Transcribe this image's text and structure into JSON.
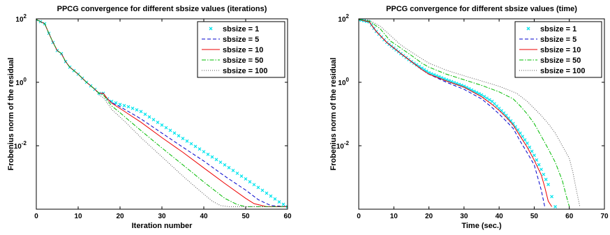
{
  "chart_data": [
    {
      "type": "line",
      "title": "PPCG convergence for different sbsize values (iterations)",
      "xlabel": "Iteration number",
      "ylabel": "Frobenius norm of the residual",
      "xlim": [
        0,
        60
      ],
      "ylim_log10": [
        -4,
        2
      ],
      "yscale": "log",
      "x_ticks": [
        "0",
        "10",
        "20",
        "30",
        "40",
        "50",
        "60"
      ],
      "y_ticks": [
        {
          "base": "10",
          "exp": "2"
        },
        {
          "base": "10",
          "exp": "0"
        },
        {
          "base": "10",
          "exp": "-2"
        }
      ],
      "legend_position": "top-right",
      "grid": false,
      "series": [
        {
          "name": "sbsize = 1",
          "color": "#00e5ee",
          "style": "markers",
          "points": [
            [
              0,
              95
            ],
            [
              2,
              70
            ],
            [
              3,
              35
            ],
            [
              4,
              18
            ],
            [
              5,
              10
            ],
            [
              6,
              8
            ],
            [
              7,
              4.5
            ],
            [
              8,
              3
            ],
            [
              10,
              1.8
            ],
            [
              12,
              1.0
            ],
            [
              14,
              0.6
            ],
            [
              15,
              0.45
            ],
            [
              16,
              0.45
            ],
            [
              17,
              0.3
            ],
            [
              18,
              0.25
            ],
            [
              20,
              0.2
            ],
            [
              22,
              0.17
            ],
            [
              25,
              0.12
            ],
            [
              30,
              0.045
            ],
            [
              35,
              0.017
            ],
            [
              40,
              0.0065
            ],
            [
              45,
              0.0025
            ],
            [
              50,
              0.0009
            ],
            [
              55,
              0.00032
            ],
            [
              58,
              0.00017
            ],
            [
              60,
              0.00012
            ]
          ]
        },
        {
          "name": "sbsize = 5",
          "color": "#0000cd",
          "style": "dashed",
          "points": [
            [
              0,
              95
            ],
            [
              2,
              70
            ],
            [
              3,
              35
            ],
            [
              4,
              18
            ],
            [
              5,
              10
            ],
            [
              6,
              8
            ],
            [
              7,
              4.5
            ],
            [
              8,
              3
            ],
            [
              10,
              1.8
            ],
            [
              12,
              1.0
            ],
            [
              14,
              0.6
            ],
            [
              15,
              0.45
            ],
            [
              16,
              0.45
            ],
            [
              17,
              0.3
            ],
            [
              18,
              0.23
            ],
            [
              20,
              0.17
            ],
            [
              22,
              0.12
            ],
            [
              25,
              0.07
            ],
            [
              30,
              0.025
            ],
            [
              35,
              0.009
            ],
            [
              40,
              0.0033
            ],
            [
              45,
              0.0011
            ],
            [
              50,
              0.0004
            ],
            [
              53,
              0.0002
            ],
            [
              56,
              0.00013
            ],
            [
              60,
              0.00012
            ]
          ]
        },
        {
          "name": "sbsize = 10",
          "color": "#ee0000",
          "style": "solid",
          "points": [
            [
              0,
              95
            ],
            [
              2,
              70
            ],
            [
              3,
              35
            ],
            [
              4,
              18
            ],
            [
              5,
              10
            ],
            [
              6,
              8
            ],
            [
              7,
              4.5
            ],
            [
              8,
              3
            ],
            [
              10,
              1.8
            ],
            [
              12,
              1.0
            ],
            [
              14,
              0.6
            ],
            [
              15,
              0.45
            ],
            [
              16,
              0.45
            ],
            [
              17,
              0.3
            ],
            [
              18,
              0.22
            ],
            [
              20,
              0.15
            ],
            [
              22,
              0.1
            ],
            [
              25,
              0.055
            ],
            [
              30,
              0.018
            ],
            [
              35,
              0.0062
            ],
            [
              40,
              0.002
            ],
            [
              45,
              0.00065
            ],
            [
              50,
              0.00022
            ],
            [
              52,
              0.00015
            ],
            [
              55,
              0.00012
            ],
            [
              60,
              0.00012
            ]
          ]
        },
        {
          "name": "sbsize = 50",
          "color": "#00bb00",
          "style": "dashdot",
          "points": [
            [
              0,
              95
            ],
            [
              2,
              70
            ],
            [
              3,
              35
            ],
            [
              4,
              18
            ],
            [
              5,
              10
            ],
            [
              6,
              8
            ],
            [
              7,
              4.5
            ],
            [
              8,
              3
            ],
            [
              10,
              1.8
            ],
            [
              12,
              1.0
            ],
            [
              14,
              0.6
            ],
            [
              15,
              0.45
            ],
            [
              16,
              0.4
            ],
            [
              17,
              0.27
            ],
            [
              18,
              0.18
            ],
            [
              20,
              0.11
            ],
            [
              22,
              0.065
            ],
            [
              25,
              0.03
            ],
            [
              30,
              0.0085
            ],
            [
              35,
              0.0025
            ],
            [
              40,
              0.00072
            ],
            [
              45,
              0.00022
            ],
            [
              48,
              0.00014
            ],
            [
              50,
              0.00012
            ],
            [
              60,
              0.00012
            ]
          ]
        },
        {
          "name": "sbsize = 100",
          "color": "#555555",
          "style": "dotted",
          "points": [
            [
              0,
              95
            ],
            [
              2,
              70
            ],
            [
              3,
              35
            ],
            [
              4,
              18
            ],
            [
              5,
              10
            ],
            [
              6,
              8
            ],
            [
              7,
              4.5
            ],
            [
              8,
              3
            ],
            [
              10,
              1.8
            ],
            [
              12,
              1.0
            ],
            [
              14,
              0.6
            ],
            [
              15,
              0.4
            ],
            [
              16,
              0.33
            ],
            [
              17,
              0.22
            ],
            [
              18,
              0.14
            ],
            [
              20,
              0.08
            ],
            [
              22,
              0.045
            ],
            [
              25,
              0.018
            ],
            [
              30,
              0.0045
            ],
            [
              35,
              0.0011
            ],
            [
              38,
              0.0005
            ],
            [
              40,
              0.0003
            ],
            [
              42,
              0.00018
            ],
            [
              44,
              0.00013
            ],
            [
              46,
              0.00012
            ],
            [
              60,
              0.00012
            ]
          ]
        }
      ]
    },
    {
      "type": "line",
      "title": "PPCG convergence for different sbsize values (time)",
      "xlabel": "Time (sec.)",
      "ylabel": "Frobenius norm of the residual",
      "xlim": [
        0,
        70
      ],
      "ylim_log10": [
        -4,
        2
      ],
      "yscale": "log",
      "x_ticks": [
        "0",
        "10",
        "20",
        "30",
        "40",
        "50",
        "60",
        "70"
      ],
      "y_ticks": [
        {
          "base": "10",
          "exp": "2"
        },
        {
          "base": "10",
          "exp": "0"
        },
        {
          "base": "10",
          "exp": "-2"
        }
      ],
      "legend_position": "top-right",
      "grid": false,
      "series": [
        {
          "name": "sbsize = 1",
          "color": "#00e5ee",
          "style": "markers",
          "points": [
            [
              0,
              95
            ],
            [
              3,
              80
            ],
            [
              5,
              40
            ],
            [
              8,
              18
            ],
            [
              10,
              12
            ],
            [
              12,
              8
            ],
            [
              15,
              4.5
            ],
            [
              18,
              2.8
            ],
            [
              20,
              2.0
            ],
            [
              25,
              1.2
            ],
            [
              30,
              0.75
            ],
            [
              35,
              0.4
            ],
            [
              38,
              0.25
            ],
            [
              40,
              0.15
            ],
            [
              42,
              0.09
            ],
            [
              44,
              0.05
            ],
            [
              46,
              0.025
            ],
            [
              48,
              0.012
            ],
            [
              50,
              0.005
            ],
            [
              52,
              0.0018
            ],
            [
              54,
              0.0006
            ],
            [
              55,
              0.00025
            ],
            [
              56,
              0.00012
            ]
          ]
        },
        {
          "name": "sbsize = 5",
          "color": "#0000cd",
          "style": "dashed",
          "points": [
            [
              0,
              95
            ],
            [
              3,
              80
            ],
            [
              5,
              40
            ],
            [
              8,
              18
            ],
            [
              10,
              12
            ],
            [
              12,
              8
            ],
            [
              15,
              4.5
            ],
            [
              18,
              2.5
            ],
            [
              20,
              1.8
            ],
            [
              25,
              1.0
            ],
            [
              30,
              0.6
            ],
            [
              35,
              0.3
            ],
            [
              38,
              0.16
            ],
            [
              40,
              0.1
            ],
            [
              42,
              0.06
            ],
            [
              44,
              0.035
            ],
            [
              46,
              0.014
            ],
            [
              48,
              0.006
            ],
            [
              50,
              0.0025
            ],
            [
              51,
              0.001
            ],
            [
              52,
              0.0004
            ],
            [
              53,
              0.00012
            ]
          ]
        },
        {
          "name": "sbsize = 10",
          "color": "#ee0000",
          "style": "solid",
          "points": [
            [
              0,
              95
            ],
            [
              3,
              80
            ],
            [
              5,
              40
            ],
            [
              8,
              18
            ],
            [
              10,
              12
            ],
            [
              12,
              8
            ],
            [
              15,
              4.5
            ],
            [
              18,
              2.5
            ],
            [
              20,
              1.8
            ],
            [
              25,
              1.1
            ],
            [
              30,
              0.7
            ],
            [
              35,
              0.35
            ],
            [
              38,
              0.2
            ],
            [
              40,
              0.13
            ],
            [
              42,
              0.08
            ],
            [
              44,
              0.045
            ],
            [
              46,
              0.02
            ],
            [
              48,
              0.009
            ],
            [
              50,
              0.0035
            ],
            [
              52,
              0.0012
            ],
            [
              53,
              0.0005
            ],
            [
              54,
              0.00018
            ],
            [
              55,
              0.00012
            ]
          ]
        },
        {
          "name": "sbsize = 50",
          "color": "#00bb00",
          "style": "dashdot",
          "points": [
            [
              0,
              95
            ],
            [
              3,
              85
            ],
            [
              6,
              50
            ],
            [
              9,
              20
            ],
            [
              12,
              12
            ],
            [
              15,
              7
            ],
            [
              18,
              4
            ],
            [
              20,
              3
            ],
            [
              25,
              1.8
            ],
            [
              30,
              1.2
            ],
            [
              35,
              0.8
            ],
            [
              40,
              0.5
            ],
            [
              44,
              0.3
            ],
            [
              46,
              0.18
            ],
            [
              48,
              0.1
            ],
            [
              50,
              0.05
            ],
            [
              52,
              0.02
            ],
            [
              54,
              0.008
            ],
            [
              56,
              0.003
            ],
            [
              58,
              0.0008
            ],
            [
              59,
              0.0003
            ],
            [
              60,
              0.00012
            ]
          ]
        },
        {
          "name": "sbsize = 100",
          "color": "#555555",
          "style": "dotted",
          "points": [
            [
              0,
              95
            ],
            [
              3,
              90
            ],
            [
              6,
              60
            ],
            [
              9,
              30
            ],
            [
              12,
              15
            ],
            [
              15,
              9
            ],
            [
              18,
              5.5
            ],
            [
              20,
              4
            ],
            [
              25,
              2.4
            ],
            [
              30,
              1.6
            ],
            [
              35,
              1.1
            ],
            [
              40,
              0.75
            ],
            [
              45,
              0.45
            ],
            [
              48,
              0.25
            ],
            [
              50,
              0.15
            ],
            [
              52,
              0.09
            ],
            [
              54,
              0.05
            ],
            [
              56,
              0.025
            ],
            [
              58,
              0.01
            ],
            [
              60,
              0.004
            ],
            [
              61,
              0.0015
            ],
            [
              62,
              0.0004
            ],
            [
              63,
              0.00012
            ]
          ]
        }
      ]
    }
  ]
}
